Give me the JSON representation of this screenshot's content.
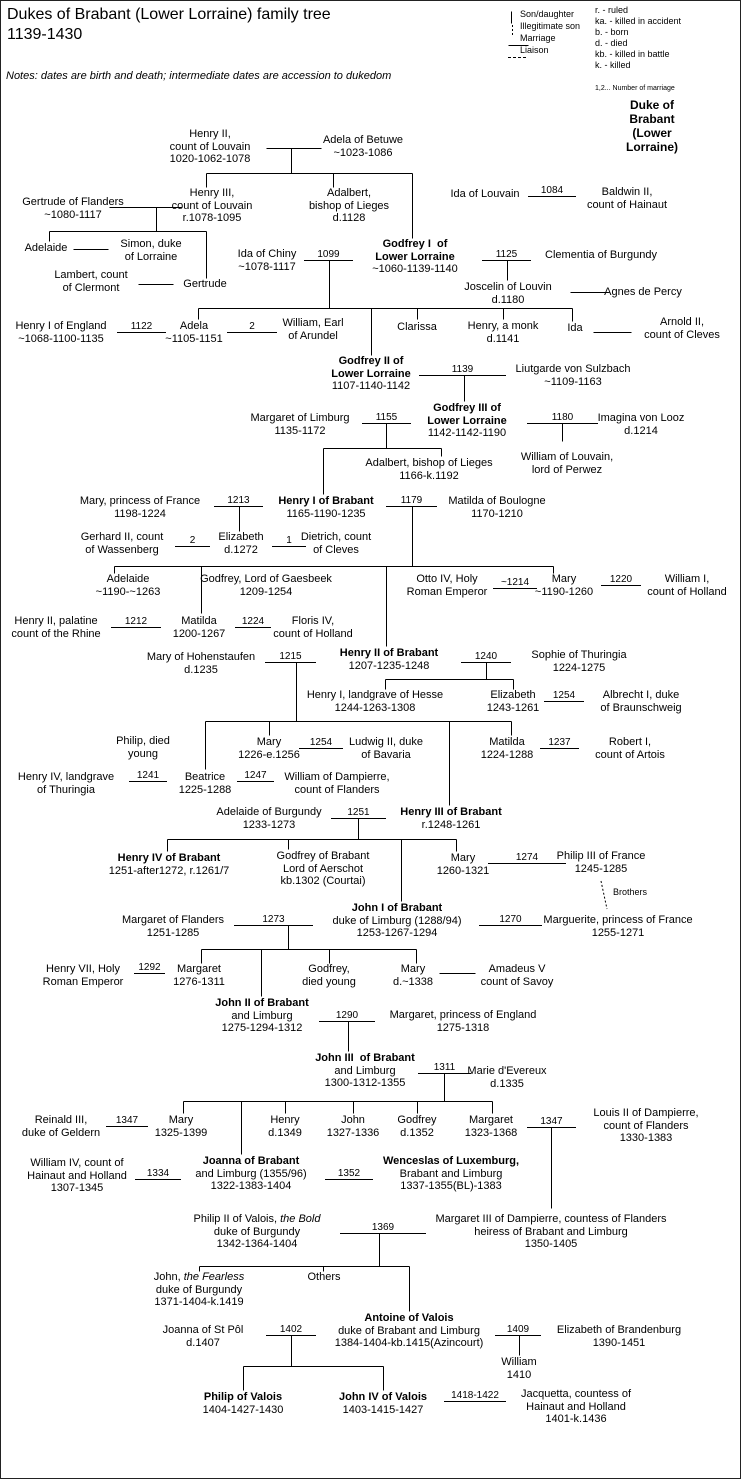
{
  "title": "Dukes of Brabant (Lower Lorraine) family tree\n1139-1430",
  "notes": "Notes: dates are birth and death; intermediate dates are accession to dukedom",
  "legend": {
    "lines": "Son/daughter\nIllegitimate son\nMarriage\nLiaison",
    "abbreviations": "r. - ruled\nka. - killed in accident\nb. - born\nd. - died\nkb. - killed in battle\nk. - killed",
    "marriage_number": "1,2... Number of marriage",
    "duke_key": "Duke of Brabant\n(Lower Lorraine)"
  },
  "brothers_label": "Brothers",
  "persons": {
    "henry2_louvain": {
      "n": "Henry II,\ncount of Louvain",
      "d": "1020-1062-1078"
    },
    "adela_betuwe": {
      "n": "Adela of Betuwe",
      "d": "~1023-1086"
    },
    "gertrude_flanders": {
      "n": "Gertrude of Flanders",
      "d": "~1080-1117"
    },
    "henry3_louvain": {
      "n": "Henry III,\ncount of Louvain",
      "d": "r.1078-1095"
    },
    "adalbert1": {
      "n": "Adalbert,\nbishop of Lieges",
      "d": "d.1128"
    },
    "ida_louvain": {
      "n": "Ida of Louvain"
    },
    "baldwin2": {
      "n": "Baldwin II,\ncount of Hainaut"
    },
    "adelaide1": {
      "n": "Adelaide"
    },
    "simon": {
      "n": "Simon, duke\nof Lorraine"
    },
    "lambert": {
      "n": "Lambert, count\nof Clermont"
    },
    "gertrude2": {
      "n": "Gertrude"
    },
    "ida_chiny": {
      "n": "Ida of Chiny",
      "d": "~1078-1117"
    },
    "godfrey1": {
      "n": "Godfrey I  of\nLower Lorraine",
      "d": "~1060-1139-1140"
    },
    "clementia": {
      "n": "Clementia of Burgundy"
    },
    "joscelin": {
      "n": "Joscelin of Louvin",
      "d": "d.1180"
    },
    "agnes": {
      "n": "Agnes de Percy"
    },
    "henry1_england": {
      "n": "Henry I of England",
      "d": "~1068-1100-1135"
    },
    "adela": {
      "n": "Adela",
      "d": "~1105-1151"
    },
    "william_arundel": {
      "n": "William, Earl\nof Arundel"
    },
    "clarissa": {
      "n": "Clarissa"
    },
    "henry_monk": {
      "n": "Henry, a monk",
      "d": "d.1141"
    },
    "ida2": {
      "n": "Ida"
    },
    "arnold2": {
      "n": "Arnold II,\ncount of Cleves"
    },
    "godfrey2": {
      "n": "Godfrey II of\nLower Lorraine",
      "d": "1107-1140-1142"
    },
    "liutgarde": {
      "n": "Liutgarde von Sulzbach",
      "d": "~1109-1163"
    },
    "godfrey3": {
      "n": "Godfrey III of\nLower Lorraine",
      "d": "1142-1142-1190"
    },
    "margaret_limburg": {
      "n": "Margaret of Limburg",
      "d": "1135-1172"
    },
    "imagina": {
      "n": "Imagina von Looz",
      "d": "d.1214"
    },
    "william_louvain": {
      "n": "William of Louvain,\nlord of Perwez"
    },
    "adalbert2": {
      "n": "Adalbert, bishop of Lieges",
      "d": "1166-k.1192"
    },
    "mary_france": {
      "n": "Mary, princess of France",
      "d": "1198-1224"
    },
    "henry1_brabant": {
      "n": "Henry I of Brabant",
      "d": "1165-1190-1235"
    },
    "matilda_boulogne": {
      "n": "Matilda of Boulogne",
      "d": "1170-1210"
    },
    "gerhard2": {
      "n": "Gerhard II, count\nof Wassenberg"
    },
    "elizabeth1": {
      "n": "Elizabeth",
      "d": "d.1272"
    },
    "dietrich": {
      "n": "Dietrich, count\nof Cleves"
    },
    "adelaide2": {
      "n": "Adelaide",
      "d": "~1190-~1263"
    },
    "godfrey_gaesbeek": {
      "n": "Godfrey, Lord of Gaesbeek",
      "d": "1209-1254"
    },
    "otto4": {
      "n": "Otto IV, Holy\nRoman Emperor"
    },
    "mary2": {
      "n": "Mary",
      "d": "~1190-1260"
    },
    "william1_holland": {
      "n": "William I,\ncount of Holland"
    },
    "henry2_palatine": {
      "n": "Henry II, palatine\ncount of the Rhine"
    },
    "matilda2": {
      "n": "Matilda",
      "d": "1200-1267"
    },
    "floris4": {
      "n": "Floris IV,\ncount of Holland"
    },
    "mary_hohenstaufen": {
      "n": "Mary of Hohenstaufen",
      "d": "d.1235"
    },
    "henry2_brabant": {
      "n": "Henry II of Brabant",
      "d": "1207-1235-1248"
    },
    "sophie": {
      "n": "Sophie of Thuringia",
      "d": "1224-1275"
    },
    "henry1_hesse": {
      "n": "Henry I, landgrave of Hesse",
      "d": "1244-1263-1308"
    },
    "elizabeth2": {
      "n": "Elizabeth",
      "d": "1243-1261"
    },
    "albrecht1": {
      "n": "Albrecht I, duke\nof Braunschweig"
    },
    "philip_young": {
      "n": "Philip, died\nyoung"
    },
    "mary3": {
      "n": "Mary",
      "d": "1226-e.1256"
    },
    "ludwig2": {
      "n": "Ludwig II, duke\nof Bavaria"
    },
    "matilda3": {
      "n": "Matilda",
      "d": "1224-1288"
    },
    "robert1": {
      "n": "Robert I,\ncount of Artois"
    },
    "henry4_thuringia": {
      "n": "Henry IV, landgrave\nof Thuringia"
    },
    "beatrice": {
      "n": "Beatrice",
      "d": "1225-1288"
    },
    "william_dampierre": {
      "n": "William of Dampierre,\ncount of Flanders"
    },
    "adelaide_burgundy": {
      "n": "Adelaide of Burgundy",
      "d": "1233-1273"
    },
    "henry3_brabant": {
      "n": "Henry III of Brabant",
      "d": "r.1248-1261"
    },
    "henry4_brabant": {
      "n": "Henry IV of Brabant",
      "d": "1251-after1272, r.1261/7"
    },
    "godfrey_aerschot": {
      "n": "Godfrey of Brabant\nLord of Aerschot",
      "d": "kb.1302 (Courtai)"
    },
    "mary4": {
      "n": "Mary",
      "d": "1260-1321"
    },
    "philip3_france": {
      "n": "Philip III of France",
      "d": "1245-1285"
    },
    "john1": {
      "n": "John I of Brabant",
      "d": "duke of Limburg (1288/94)\n1253-1267-1294"
    },
    "margaret_flanders": {
      "n": "Margaret of Flanders",
      "d": "1251-1285"
    },
    "marguerite": {
      "n": "Marguerite, princess of France",
      "d": "1255-1271"
    },
    "henry7": {
      "n": "Henry VII, Holy\nRoman Emperor"
    },
    "margaret2": {
      "n": "Margaret",
      "d": "1276-1311"
    },
    "godfrey_young": {
      "n": "Godfrey,\ndied young"
    },
    "mary5": {
      "n": "Mary",
      "d": "d.~1338"
    },
    "amadeus5": {
      "n": "Amadeus V\ncount of Savoy"
    },
    "john2": {
      "n": "John II of Brabant",
      "d": "and Limburg\n1275-1294-1312"
    },
    "margaret_england": {
      "n": "Margaret, princess of England",
      "d": "1275-1318"
    },
    "john3": {
      "n": "John III  of Brabant",
      "d": "and Limburg\n1300-1312-1355"
    },
    "marie_evereux": {
      "n": "Marie d'Evereux",
      "d": "d.1335"
    },
    "reinald3": {
      "n": "Reinald III,\nduke of Geldern"
    },
    "mary6": {
      "n": "Mary",
      "d": "1325-1399"
    },
    "henry_1349": {
      "n": "Henry",
      "d": "d.1349"
    },
    "john_1327": {
      "n": "John",
      "d": "1327-1336"
    },
    "godfrey_1352": {
      "n": "Godfrey",
      "d": "d.1352"
    },
    "margaret3": {
      "n": "Margaret",
      "d": "1323-1368"
    },
    "louis2": {
      "n": "Louis II of Dampierre,\ncount of Flanders",
      "d": "1330-1383"
    },
    "william4": {
      "n": "William IV, count of\nHainaut and Holland",
      "d": "1307-1345"
    },
    "joanna": {
      "n": "Joanna of Brabant",
      "d": "and Limburg (1355/96)\n1322-1383-1404"
    },
    "wenceslas": {
      "n": "Wenceslas of Luxemburg,",
      "d": "Brabant and Limburg\n1337-1355(BL)-1383"
    },
    "philip_bold": {
      "n": "Philip II of Valois, ",
      "em": "the Bold",
      "d": "duke of Burgundy\n1342-1364-1404"
    },
    "margaret3_dampierre": {
      "n": "Margaret III of Dampierre, countess of Flanders\nheiress of Brabant and Limburg",
      "d": "1350-1405"
    },
    "john_fearless": {
      "n": "John, ",
      "em": "the Fearless",
      "d": "duke of Burgundy\n1371-1404-k.1419"
    },
    "others": {
      "n": "Others"
    },
    "antoine": {
      "n": "Antoine of Valois",
      "d": "duke of Brabant and Limburg\n1384-1404-kb.1415(Azincourt)"
    },
    "joanna_stpol": {
      "n": "Joanna of St Pôl",
      "d": "d.1407"
    },
    "elizabeth_brandenburg": {
      "n": "Elizabeth of Brandenburg",
      "d": "1390-1451"
    },
    "william_1410": {
      "n": "William",
      "d": "1410"
    },
    "philip_valois": {
      "n": "Philip of Valois",
      "d": "1404-1427-1430"
    },
    "john4": {
      "n": "John IV of Valois",
      "d": "1403-1415-1427"
    },
    "jacquetta": {
      "n": "Jacquetta, countess of\nHainaut and Holland",
      "d": "1401-k.1436"
    }
  },
  "marriages": {
    "m1084": "1084",
    "m1099": "1099",
    "m1125": "1125",
    "m1122": "1122",
    "m_adela2": "2",
    "m1139": "1139",
    "m1155": "1155",
    "m1180": "1180",
    "m1213": "1213",
    "m1179": "1179",
    "m_eliz2": "2",
    "m_eliz1": "1",
    "m1214": "~1214",
    "m1220": "1220",
    "m1212": "1212",
    "m1224": "1224",
    "m1215": "1215",
    "m1240": "1240",
    "m1254a": "1254",
    "m1254b": "1254",
    "m1237": "1237",
    "m1241": "1241",
    "m1247": "1247",
    "m1251": "1251",
    "m1274": "1274",
    "m1273": "1273",
    "m1270": "1270",
    "m1292": "1292",
    "m1290": "1290",
    "m1311": "1311",
    "m1347a": "1347",
    "m1347b": "1347",
    "m1334": "1334",
    "m1352": "1352",
    "m1369": "1369",
    "m1402": "1402",
    "m1409": "1409",
    "m1418": "1418-1422"
  },
  "dukes": [
    "godfrey1",
    "godfrey2",
    "godfrey3",
    "henry1_brabant",
    "henry2_brabant",
    "henry3_brabant",
    "henry4_brabant",
    "john1",
    "john2",
    "john3",
    "joanna",
    "wenceslas",
    "antoine",
    "philip_valois",
    "john4"
  ]
}
